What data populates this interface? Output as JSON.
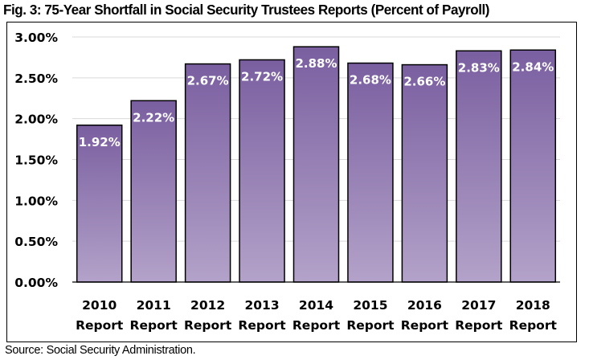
{
  "figure": {
    "title": "Fig. 3: 75-Year Shortfall in Social Security Trustees Reports (Percent of Payroll)",
    "source": "Source: Social Security Administration."
  },
  "colors": {
    "bar_top": "#7a5fa0",
    "bar_bottom": "#b3a2c9",
    "bar_outline": "#000000",
    "gridline": "#d9d9d9",
    "label_text": "#ffffff"
  },
  "chart_data": {
    "type": "bar",
    "title": "Fig. 3: 75-Year Shortfall in Social Security Trustees Reports (Percent of Payroll)",
    "xlabel": "",
    "ylabel": "",
    "categories": [
      [
        "2010",
        "Report"
      ],
      [
        "2011",
        "Report"
      ],
      [
        "2012",
        "Report"
      ],
      [
        "2013",
        "Report"
      ],
      [
        "2014",
        "Report"
      ],
      [
        "2015",
        "Report"
      ],
      [
        "2016",
        "Report"
      ],
      [
        "2017",
        "Report"
      ],
      [
        "2018",
        "Report"
      ]
    ],
    "values": [
      1.92,
      2.22,
      2.67,
      2.72,
      2.88,
      2.68,
      2.66,
      2.83,
      2.84
    ],
    "data_labels": [
      "1.92%",
      "2.22%",
      "2.67%",
      "2.72%",
      "2.88%",
      "2.68%",
      "2.66%",
      "2.83%",
      "2.84%"
    ],
    "ylim": [
      0,
      3.0
    ],
    "yticks": [
      0,
      0.5,
      1.0,
      1.5,
      2.0,
      2.5,
      3.0
    ],
    "ytick_labels": [
      "0.00%",
      "0.50%",
      "1.00%",
      "1.50%",
      "2.00%",
      "2.50%",
      "3.00%"
    ],
    "grid": true,
    "legend": "none",
    "unit": "percent of payroll"
  }
}
